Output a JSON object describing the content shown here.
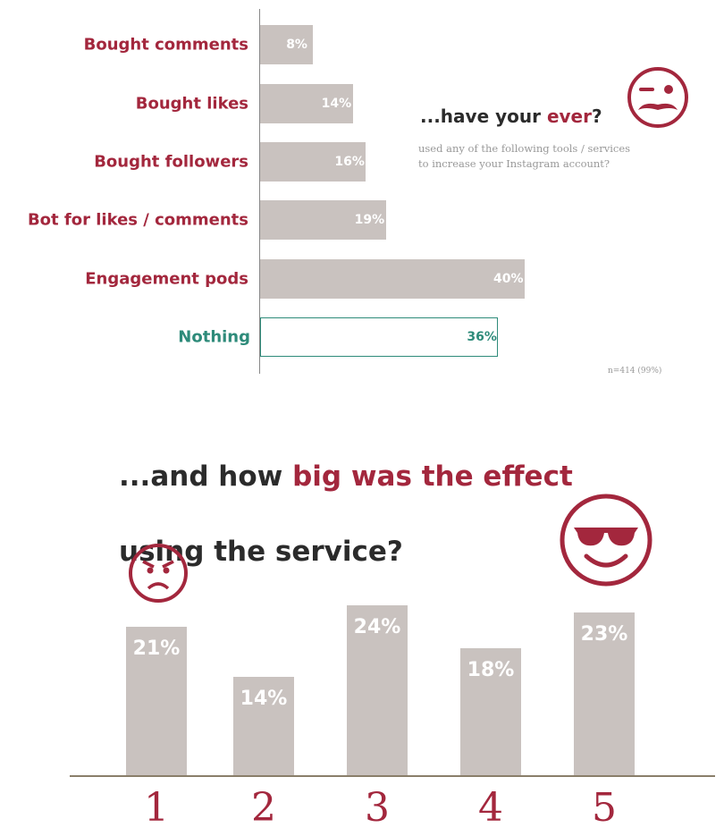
{
  "colors": {
    "accent": "#a3273d",
    "bar": "#c9c2bf",
    "highlight": "#2e8b7a",
    "text": "#2b2b2b"
  },
  "chart_data": [
    {
      "type": "bar",
      "orientation": "horizontal",
      "categories": [
        "Bought comments",
        "Bought likes",
        "Bought followers",
        "Bot for likes / comments",
        "Engagement pods",
        "Nothing"
      ],
      "values": [
        8,
        14,
        16,
        19,
        40,
        36
      ],
      "value_labels": [
        "8%",
        "14%",
        "16%",
        "19%",
        "40%",
        "36%"
      ],
      "title": {
        "pre": "...have your ",
        "accent": "ever",
        "post": "?"
      },
      "subtitle": [
        "used any of the following tools / services",
        "to increase your Instagram account?"
      ],
      "note": "n=414 (99%)",
      "icons": [
        "winking-mustache-face-icon"
      ]
    },
    {
      "type": "bar",
      "orientation": "vertical",
      "categories": [
        "1",
        "2",
        "3",
        "4",
        "5"
      ],
      "values": [
        21,
        14,
        24,
        18,
        23
      ],
      "value_labels": [
        "21%",
        "14%",
        "24%",
        "18%",
        "23%"
      ],
      "title": {
        "pre": "...and how ",
        "accent": "big was the effect",
        "line2": "using the service?"
      },
      "icons": [
        "angry-face-icon",
        "sunglasses-smile-face-icon"
      ]
    }
  ]
}
